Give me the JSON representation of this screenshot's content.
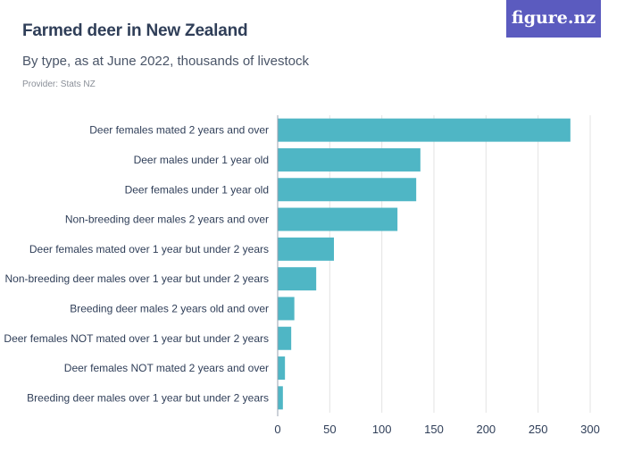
{
  "header": {
    "title": "Farmed deer in New Zealand",
    "subtitle": "By type, as at June 2022, thousands of livestock",
    "provider": "Provider: Stats NZ",
    "logo": "figure.nz"
  },
  "colors": {
    "bar": "#4fb6c5",
    "grid": "#e3e3e3",
    "axis": "#9aa3b0",
    "logo_bg": "#5b5bbf"
  },
  "chart_data": {
    "type": "bar",
    "orientation": "horizontal",
    "categories": [
      "Deer females mated 2 years and over",
      "Deer males under 1 year old",
      "Deer females under 1 year old",
      "Non-breeding deer males 2 years and over",
      "Deer females mated over 1 year but under 2 years",
      "Non-breeding deer males over 1 year but under 2 years",
      "Breeding deer males 2 years old and over",
      "Deer females NOT mated over 1 year but under 2 years",
      "Deer females NOT mated 2 years and over",
      "Breeding deer males over 1 year but under 2 years"
    ],
    "values": [
      281,
      137,
      133,
      115,
      54,
      37,
      16,
      13,
      7,
      5
    ],
    "xlim": [
      0,
      300
    ],
    "xticks": [
      0,
      50,
      100,
      150,
      200,
      250,
      300
    ],
    "grid": true
  }
}
